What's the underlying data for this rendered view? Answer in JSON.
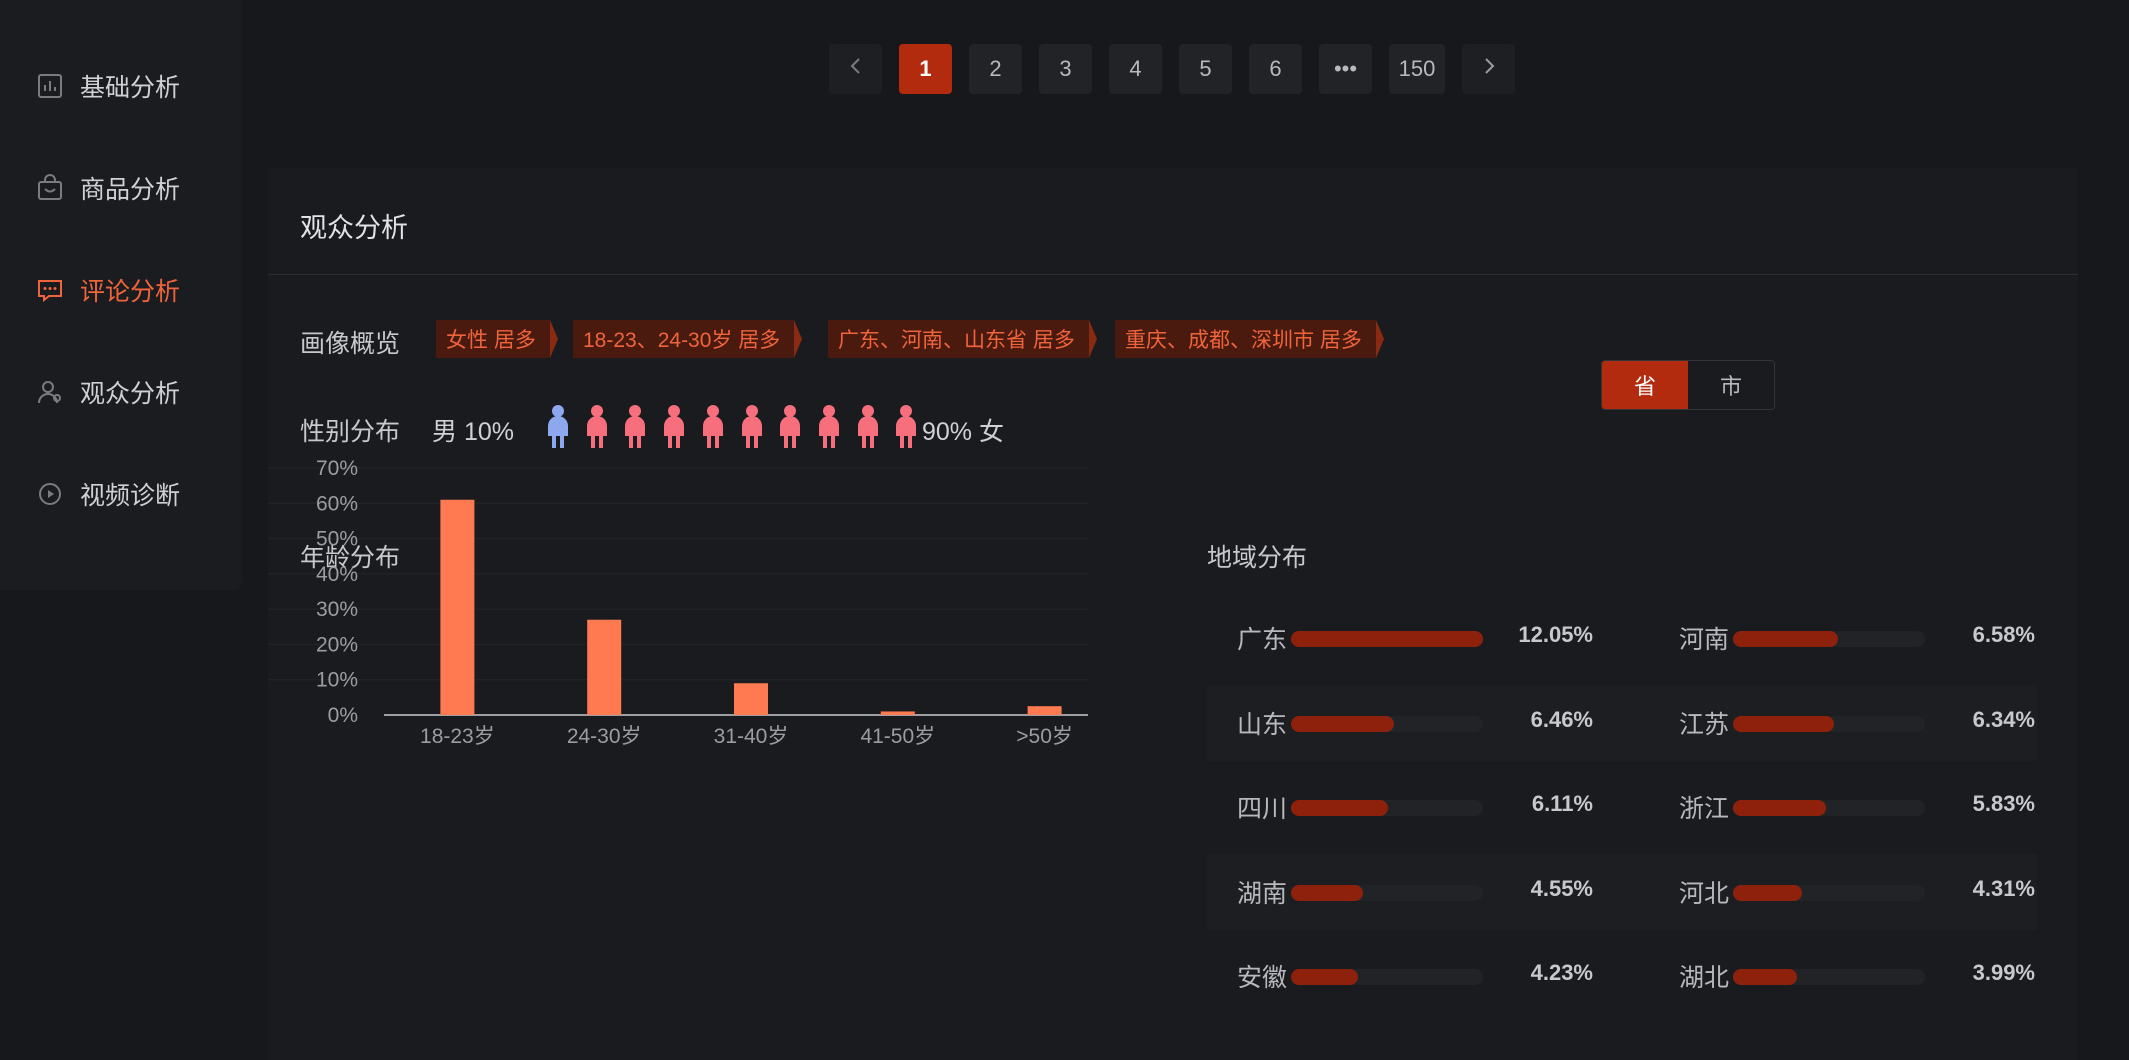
{
  "sidebar": {
    "items": [
      {
        "label": "基础分析",
        "icon": "bar-chart-icon",
        "active": false
      },
      {
        "label": "商品分析",
        "icon": "shopping-bag-icon",
        "active": false
      },
      {
        "label": "评论分析",
        "icon": "comment-icon",
        "active": true
      },
      {
        "label": "观众分析",
        "icon": "user-icon",
        "active": false
      },
      {
        "label": "视频诊断",
        "icon": "play-circle-icon",
        "active": false
      }
    ]
  },
  "pagination": {
    "prev_icon": "chevron-left-icon",
    "pages": [
      "1",
      "2",
      "3",
      "4",
      "5",
      "6",
      "•••",
      "150"
    ],
    "current": "1",
    "next_icon": "chevron-right-icon"
  },
  "panel": {
    "title": "观众分析",
    "overview_label": "画像概览",
    "tags": [
      "女性 居多",
      "18-23、24-30岁 居多",
      "广东、河南、山东省 居多",
      "重庆、成都、深圳市 居多"
    ],
    "gender_label": "性别分布",
    "male_text": "男 10%",
    "female_text": "90% 女",
    "male_count": 1,
    "female_count": 9,
    "male_color": "#8ea8f0",
    "female_color": "#f76f7c",
    "age_title": "年龄分布",
    "region_title": "地域分布",
    "region_toggle": {
      "options": [
        "省",
        "市"
      ],
      "selected": "省"
    }
  },
  "chart_data": {
    "type": "bar",
    "categories": [
      "18-23岁",
      "24-30岁",
      "31-40岁",
      "41-50岁",
      ">50岁"
    ],
    "values": [
      61,
      27,
      9,
      1,
      2.5
    ],
    "ylim": [
      0,
      70
    ],
    "yticks": [
      "0%",
      "10%",
      "20%",
      "30%",
      "40%",
      "50%",
      "60%",
      "70%"
    ],
    "grid": true,
    "bar_color": "#ff7a50",
    "title": "",
    "xlabel": "",
    "ylabel": ""
  },
  "regions": [
    {
      "name": "广东",
      "value": "12.05%",
      "pct": 12.05
    },
    {
      "name": "河南",
      "value": "6.58%",
      "pct": 6.58
    },
    {
      "name": "山东",
      "value": "6.46%",
      "pct": 6.46
    },
    {
      "name": "江苏",
      "value": "6.34%",
      "pct": 6.34
    },
    {
      "name": "四川",
      "value": "6.11%",
      "pct": 6.11
    },
    {
      "name": "浙江",
      "value": "5.83%",
      "pct": 5.83
    },
    {
      "name": "湖南",
      "value": "4.55%",
      "pct": 4.55
    },
    {
      "name": "河北",
      "value": "4.31%",
      "pct": 4.31
    },
    {
      "name": "安徽",
      "value": "4.23%",
      "pct": 4.23
    },
    {
      "name": "湖北",
      "value": "3.99%",
      "pct": 3.99
    }
  ]
}
